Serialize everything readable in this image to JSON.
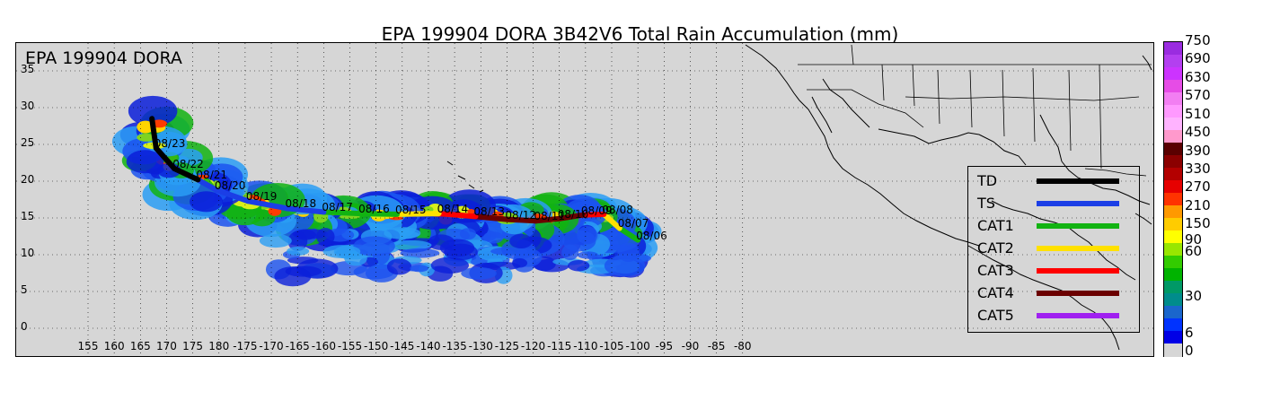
{
  "title": "EPA 199904 DORA 3B42V6 Total Rain Accumulation (mm)",
  "storm_label": "EPA 199904 DORA",
  "map": {
    "lat_labels": [
      "35",
      "30",
      "25",
      "20",
      "15",
      "10",
      "5",
      "0"
    ],
    "lat_values": [
      35,
      30,
      25,
      20,
      15,
      10,
      5,
      0
    ],
    "lon_labels": [
      "155",
      "160",
      "165",
      "170",
      "175",
      "180",
      "-175",
      "-170",
      "-165",
      "-160",
      "-155",
      "-150",
      "-145",
      "-140",
      "-135",
      "-130",
      "-125",
      "-120",
      "-115",
      "-110",
      "-105",
      "-100",
      "-95",
      "-90",
      "-85",
      "-80"
    ],
    "lon_values": [
      155,
      160,
      165,
      170,
      175,
      180,
      185,
      190,
      195,
      200,
      205,
      210,
      215,
      220,
      225,
      230,
      235,
      240,
      245,
      250,
      255,
      260,
      265,
      270,
      275,
      280
    ],
    "land_color": "#d6d6d6",
    "grid": "dotted"
  },
  "track": [
    {
      "date": "08/06",
      "lon": 260.0,
      "lat": 12.0,
      "cat": "TS"
    },
    {
      "date": "08/07",
      "lon": 256.5,
      "lat": 13.6,
      "cat": "CAT1"
    },
    {
      "date": "08/08",
      "lon": 253.5,
      "lat": 15.5,
      "cat": "CAT2"
    },
    {
      "date": "08/09",
      "lon": 249.5,
      "lat": 15.4,
      "cat": "CAT3"
    },
    {
      "date": "08/10",
      "lon": 245.0,
      "lat": 14.9,
      "cat": "CAT4"
    },
    {
      "date": "08/11",
      "lon": 240.5,
      "lat": 14.6,
      "cat": "CAT4"
    },
    {
      "date": "08/12",
      "lon": 235.0,
      "lat": 14.8,
      "cat": "CAT4"
    },
    {
      "date": "08/13",
      "lon": 229.0,
      "lat": 15.2,
      "cat": "CAT4"
    },
    {
      "date": "08/14",
      "lon": 222.0,
      "lat": 15.6,
      "cat": "CAT3"
    },
    {
      "date": "08/15",
      "lon": 214.0,
      "lat": 15.5,
      "cat": "CAT2"
    },
    {
      "date": "08/16",
      "lon": 207.0,
      "lat": 15.6,
      "cat": "CAT1"
    },
    {
      "date": "08/17",
      "lon": 200.0,
      "lat": 15.8,
      "cat": "CAT1"
    },
    {
      "date": "08/18",
      "lon": 193.0,
      "lat": 16.3,
      "cat": "TS"
    },
    {
      "date": "08/19",
      "lon": 185.5,
      "lat": 17.3,
      "cat": "TS"
    },
    {
      "date": "08/20",
      "lon": 179.5,
      "lat": 18.8,
      "cat": "TS"
    },
    {
      "date": "08/21",
      "lon": 176.0,
      "lat": 20.2,
      "cat": "TS"
    },
    {
      "date": "08/22",
      "lon": 171.5,
      "lat": 21.7,
      "cat": "TD"
    },
    {
      "date": "08/23",
      "lon": 168.0,
      "lat": 24.5,
      "cat": "TD"
    },
    {
      "date": "",
      "lon": 167.2,
      "lat": 28.5,
      "cat": "TD"
    }
  ],
  "legend": {
    "items": [
      {
        "label": "TD",
        "color": "#000000"
      },
      {
        "label": "TS",
        "color": "#1b3ee6"
      },
      {
        "label": "CAT1",
        "color": "#12b312"
      },
      {
        "label": "CAT2",
        "color": "#ffe100"
      },
      {
        "label": "CAT3",
        "color": "#ff0000"
      },
      {
        "label": "CAT4",
        "color": "#6b0000"
      },
      {
        "label": "CAT5",
        "color": "#a020f0"
      }
    ]
  },
  "colorbar": {
    "labels": [
      "750",
      "690",
      "630",
      "570",
      "510",
      "450",
      "390",
      "330",
      "270",
      "210",
      "150",
      "90",
      "60",
      "30",
      "6",
      "0"
    ],
    "segments": [
      "#9a2ce0",
      "#b33ff0",
      "#cc33ff",
      "#e64ce6",
      "#f27ef2",
      "#ff99ff",
      "#ffb3ff",
      "#ff99cc",
      "#5a0000",
      "#8b0000",
      "#b30000",
      "#e60000",
      "#ff3300",
      "#ff9900",
      "#ffcc00",
      "#ffff00",
      "#99e600",
      "#33cc00",
      "#00b300",
      "#009966",
      "#008c8c",
      "#1a66cc",
      "#0033ff",
      "#0000e6",
      "#d6d6d6"
    ]
  }
}
